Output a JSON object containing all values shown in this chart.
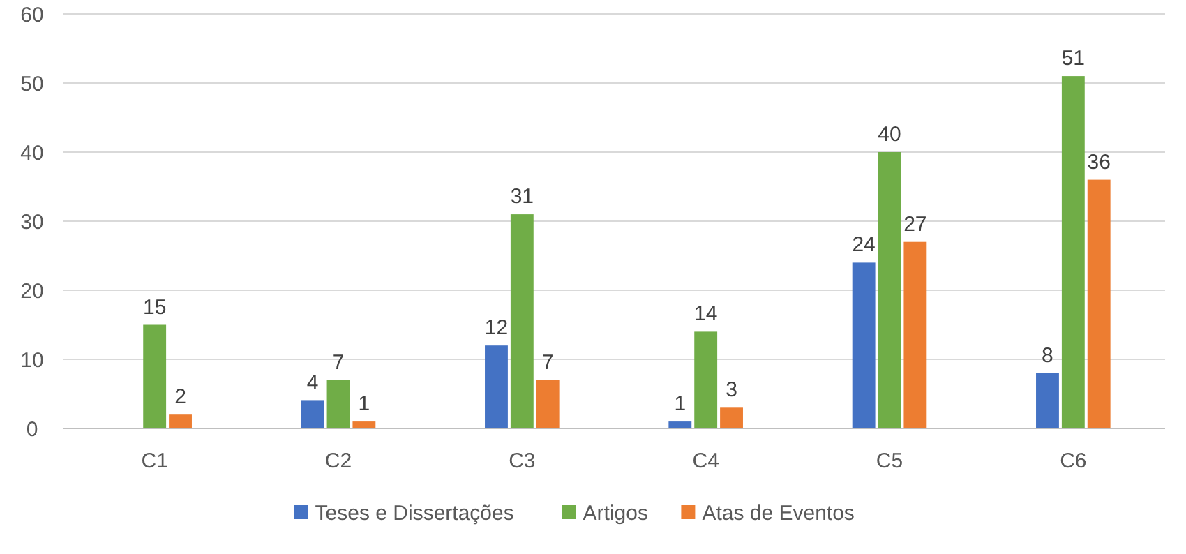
{
  "chart_data": {
    "type": "bar",
    "categories": [
      "C1",
      "C2",
      "C3",
      "C4",
      "C5",
      "C6"
    ],
    "series": [
      {
        "name": "Teses e Dissertações",
        "color": "#4472c4",
        "values": [
          null,
          4,
          12,
          1,
          24,
          8
        ]
      },
      {
        "name": "Artigos",
        "color": "#70ad47",
        "values": [
          15,
          7,
          31,
          14,
          40,
          51
        ]
      },
      {
        "name": "Atas de Eventos",
        "color": "#ed7d31",
        "values": [
          2,
          1,
          7,
          3,
          27,
          36
        ]
      }
    ],
    "ylim": [
      0,
      60
    ],
    "yticks": [
      0,
      10,
      20,
      30,
      40,
      50,
      60
    ],
    "grid": "y",
    "legend": "bottom",
    "data_labels": true
  }
}
